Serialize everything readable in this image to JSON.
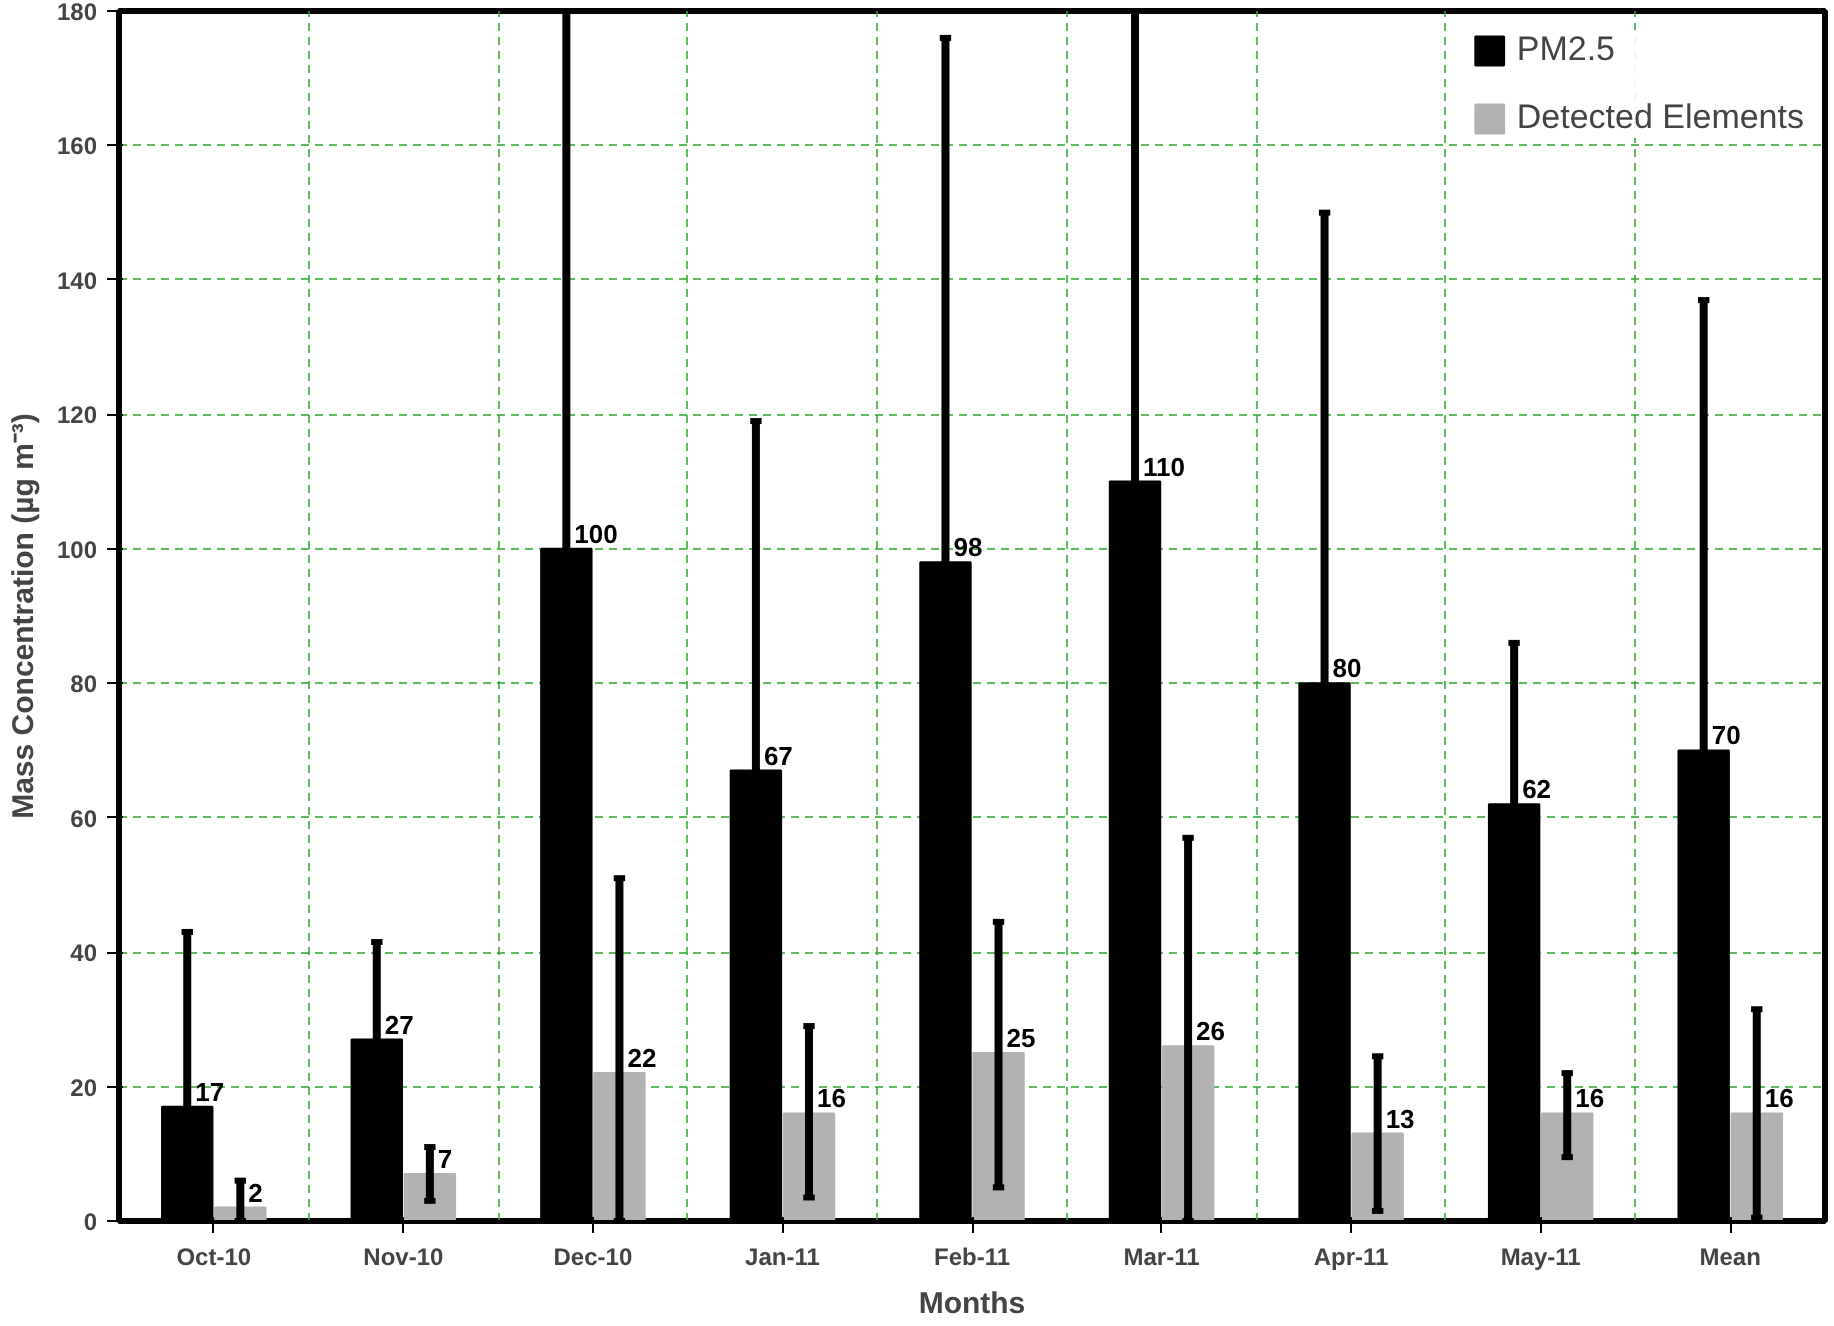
{
  "chart_data": {
    "type": "bar",
    "xlabel": "Months",
    "ylabel": "Mass Concentration (µg m⁻³)",
    "categories": [
      "Oct-10",
      "Nov-10",
      "Dec-10",
      "Jan-11",
      "Feb-11",
      "Mar-11",
      "Apr-11",
      "May-11",
      "Mean"
    ],
    "series": [
      {
        "name": "PM2.5",
        "color": "#000000",
        "values": [
          17,
          27,
          100,
          67,
          98,
          110,
          80,
          62,
          70
        ],
        "errors": [
          [
            17,
            43
          ],
          [
            27,
            41.5
          ],
          [
            100,
            180
          ],
          [
            67,
            119
          ],
          [
            98,
            176
          ],
          [
            110,
            180
          ],
          [
            80,
            150
          ],
          [
            62,
            86
          ],
          [
            70,
            137
          ]
        ]
      },
      {
        "name": "Detected Elements",
        "color": "#b2b2b2",
        "values": [
          2,
          7,
          22,
          16,
          25,
          26,
          13,
          16,
          16
        ],
        "errors": [
          [
            0,
            6
          ],
          [
            3,
            11
          ],
          [
            0,
            51
          ],
          [
            3.5,
            29
          ],
          [
            5,
            44.5
          ],
          [
            0,
            57
          ],
          [
            1.5,
            24.5
          ],
          [
            9.5,
            22
          ],
          [
            0.5,
            31.5
          ]
        ]
      }
    ],
    "data_labels": true,
    "ylim": [
      0,
      180
    ],
    "yticks": [
      0,
      20,
      40,
      60,
      80,
      100,
      120,
      140,
      160,
      180
    ],
    "grid": true,
    "legend": "top right"
  }
}
